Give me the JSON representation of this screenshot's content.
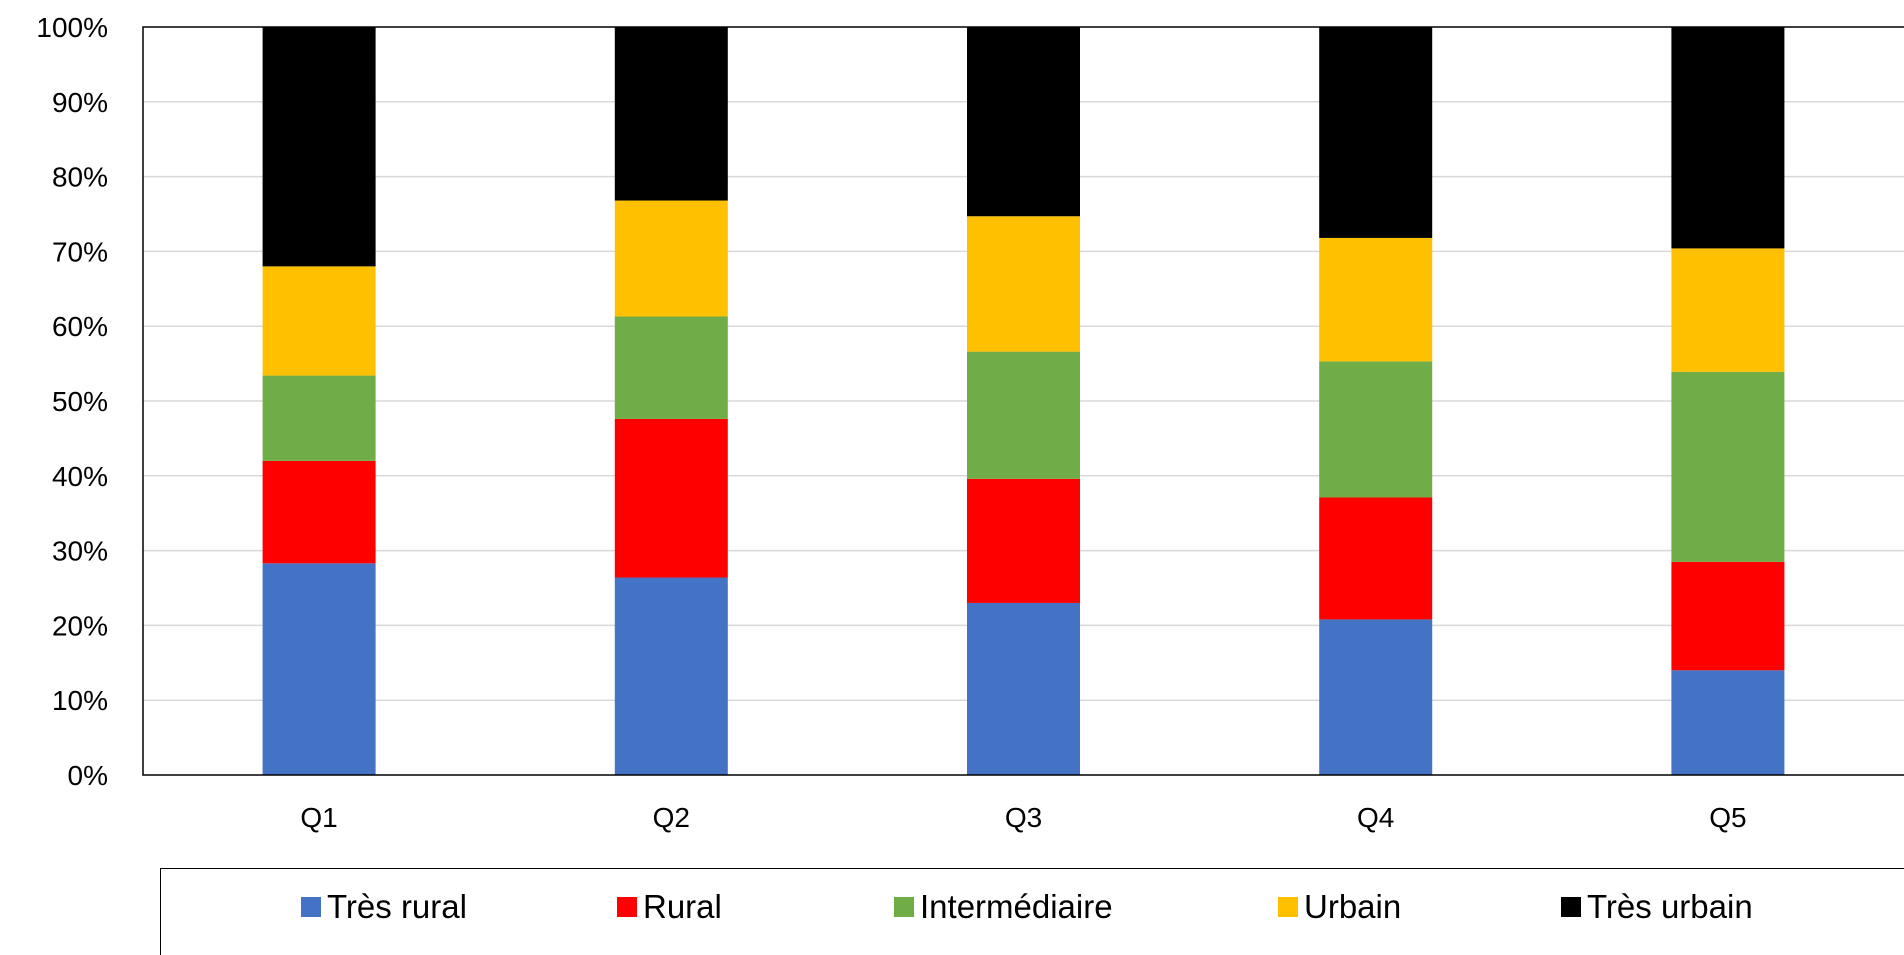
{
  "chart_data": {
    "type": "bar",
    "stacked": true,
    "categories": [
      "Q1",
      "Q2",
      "Q3",
      "Q4",
      "Q5"
    ],
    "series": [
      {
        "name": "Très rural",
        "color": "#4472C4",
        "values": [
          28.3,
          26.4,
          23.0,
          20.8,
          14.0
        ]
      },
      {
        "name": "Rural",
        "color": "#FF0000",
        "values": [
          13.7,
          21.2,
          16.6,
          16.3,
          14.5
        ]
      },
      {
        "name": "Intermédiaire",
        "color": "#70AD47",
        "values": [
          11.4,
          13.7,
          17.0,
          18.2,
          25.4
        ]
      },
      {
        "name": "Urbain",
        "color": "#FFC000",
        "values": [
          14.6,
          15.5,
          18.1,
          16.5,
          16.5
        ]
      },
      {
        "name": "Très urbain",
        "color": "#000000",
        "values": [
          32.0,
          23.2,
          25.3,
          28.2,
          29.6
        ]
      }
    ],
    "y_tick_labels": [
      "0%",
      "10%",
      "20%",
      "30%",
      "40%",
      "50%",
      "60%",
      "70%",
      "80%",
      "90%",
      "100%"
    ],
    "ylim": [
      0,
      100
    ],
    "grid": true,
    "legend_position": "bottom"
  }
}
